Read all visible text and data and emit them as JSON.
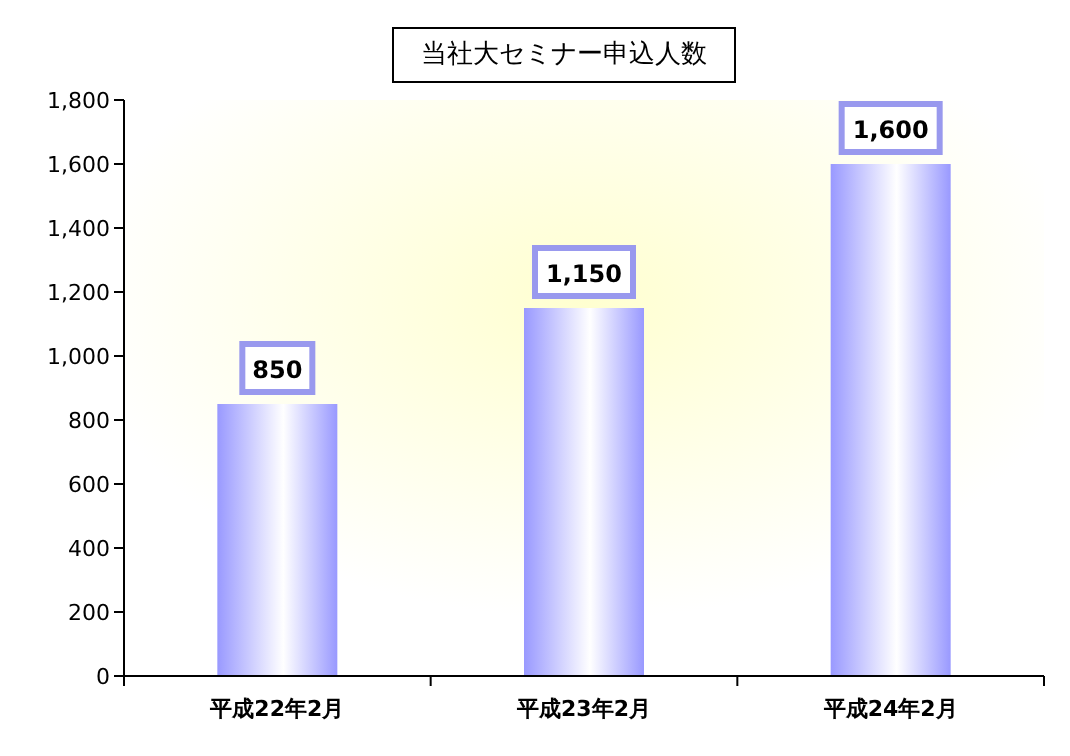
{
  "chart_data": {
    "type": "bar",
    "title": "当社大セミナー申込人数",
    "categories": [
      "平成22年2月",
      "平成23年2月",
      "平成24年2月"
    ],
    "values": [
      850,
      1150,
      1600
    ],
    "value_labels": [
      "850",
      "1,150",
      "1,600"
    ],
    "color": "#9999ff",
    "ylim": [
      0,
      1800
    ],
    "yticks": [
      {
        "value": 0,
        "label": "0"
      },
      {
        "value": 200,
        "label": "200"
      },
      {
        "value": 400,
        "label": "400"
      },
      {
        "value": 600,
        "label": "600"
      },
      {
        "value": 800,
        "label": "800"
      },
      {
        "value": 1000,
        "label": "1,000"
      },
      {
        "value": 1200,
        "label": "1,200"
      },
      {
        "value": 1400,
        "label": "1,400"
      },
      {
        "value": 1600,
        "label": "1,600"
      },
      {
        "value": 1800,
        "label": "1,800"
      }
    ],
    "grid": false
  }
}
